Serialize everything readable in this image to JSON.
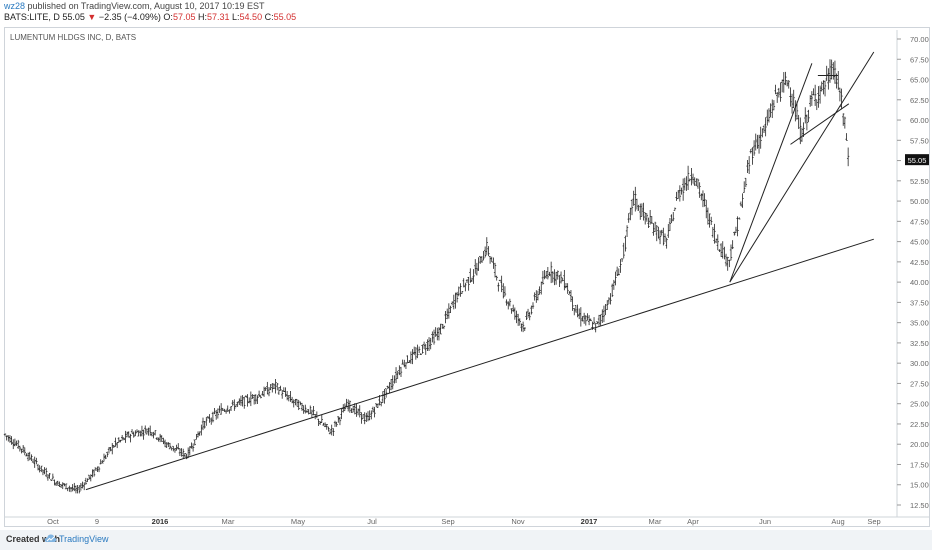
{
  "header": {
    "username": "wz28",
    "published_text": "published on TradingView.com, August 10, 2017 10:19 EST",
    "symbol": "BATS:LITE, D",
    "last": "55.05",
    "change_arrow": "▼",
    "change": "−2.35 (−4.09%)",
    "open_label": "O:",
    "open": "57.05",
    "high_label": "H:",
    "high": "57.31",
    "low_label": "L:",
    "low": "54.50",
    "close_label": "C:",
    "close": "55.05"
  },
  "footer": {
    "created_with": "Created with",
    "brand": "TradingView",
    "logo_icon": "tradingview-cloud-icon"
  },
  "colors": {
    "bars": "#222222",
    "trendline": "#222222",
    "down": "#d32f2f",
    "brand": "#2a7ac0",
    "axis_text": "#666666"
  },
  "chart_data": {
    "type": "ohlc",
    "title": "LUMENTUM HLDGS INC, D, BATS",
    "price_axis": {
      "side": "right",
      "ylim": [
        11.5,
        71.0
      ],
      "ticks": [
        "70.00",
        "67.50",
        "65.00",
        "62.50",
        "60.00",
        "57.50",
        "55.00",
        "52.50",
        "50.00",
        "47.50",
        "45.00",
        "42.50",
        "40.00",
        "37.50",
        "35.00",
        "32.50",
        "30.00",
        "27.50",
        "25.00",
        "22.50",
        "20.00",
        "17.50",
        "15.00",
        "12.50"
      ],
      "last_price_label": "55.05"
    },
    "time_axis": {
      "labels": [
        "Oct",
        "9",
        "2016",
        "Mar",
        "May",
        "Jul",
        "Sep",
        "Nov",
        "2017",
        "Mar",
        "Apr",
        "Jun",
        "Aug",
        "Sep"
      ],
      "bold_labels": [
        "2016",
        "2017"
      ]
    },
    "grid": false,
    "price_path": [
      [
        "2015-09-01",
        21.2
      ],
      [
        "2015-09-15",
        19.5
      ],
      [
        "2015-10-01",
        17.0
      ],
      [
        "2015-10-15",
        15.2
      ],
      [
        "2015-11-01",
        14.3
      ],
      [
        "2015-11-15",
        16.5
      ],
      [
        "2015-12-01",
        19.8
      ],
      [
        "2015-12-15",
        21.2
      ],
      [
        "2016-01-01",
        21.8
      ],
      [
        "2016-01-15",
        20.0
      ],
      [
        "2016-02-01",
        18.6
      ],
      [
        "2016-02-15",
        22.5
      ],
      [
        "2016-03-01",
        24.2
      ],
      [
        "2016-03-15",
        25.0
      ],
      [
        "2016-04-01",
        26.0
      ],
      [
        "2016-04-15",
        27.2
      ],
      [
        "2016-05-01",
        25.2
      ],
      [
        "2016-05-15",
        24.0
      ],
      [
        "2016-06-01",
        21.5
      ],
      [
        "2016-06-15",
        25.0
      ],
      [
        "2016-07-01",
        23.0
      ],
      [
        "2016-07-15",
        25.8
      ],
      [
        "2016-08-01",
        30.0
      ],
      [
        "2016-08-15",
        31.5
      ],
      [
        "2016-09-01",
        34.0
      ],
      [
        "2016-09-15",
        38.5
      ],
      [
        "2016-10-01",
        41.5
      ],
      [
        "2016-10-10",
        44.3
      ],
      [
        "2016-10-20",
        40.0
      ],
      [
        "2016-11-01",
        36.5
      ],
      [
        "2016-11-10",
        34.5
      ],
      [
        "2016-11-20",
        38.0
      ],
      [
        "2016-12-01",
        41.5
      ],
      [
        "2016-12-15",
        40.0
      ],
      [
        "2016-12-25",
        36.0
      ],
      [
        "2017-01-10",
        34.5
      ],
      [
        "2017-01-20",
        37.5
      ],
      [
        "2017-02-01",
        43.0
      ],
      [
        "2017-02-10",
        50.5
      ],
      [
        "2017-02-20",
        48.0
      ],
      [
        "2017-03-01",
        46.5
      ],
      [
        "2017-03-10",
        45.0
      ],
      [
        "2017-03-20",
        51.0
      ],
      [
        "2017-04-01",
        53.5
      ],
      [
        "2017-04-10",
        50.0
      ],
      [
        "2017-04-20",
        45.5
      ],
      [
        "2017-05-01",
        42.5
      ],
      [
        "2017-05-10",
        48.0
      ],
      [
        "2017-05-20",
        56.0
      ],
      [
        "2017-06-01",
        59.0
      ],
      [
        "2017-06-10",
        63.0
      ],
      [
        "2017-06-20",
        65.0
      ],
      [
        "2017-07-01",
        58.0
      ],
      [
        "2017-07-10",
        62.5
      ],
      [
        "2017-07-20",
        64.0
      ],
      [
        "2017-07-28",
        66.5
      ],
      [
        "2017-08-03",
        63.0
      ],
      [
        "2017-08-07",
        59.0
      ],
      [
        "2017-08-10",
        55.05
      ]
    ],
    "trendlines": [
      {
        "from": [
          "2015-11-08",
          14.4
        ],
        "to": [
          "2017-08-31",
          45.3
        ]
      },
      {
        "from": [
          "2017-05-02",
          40.0
        ],
        "to": [
          "2017-08-31",
          68.4
        ]
      },
      {
        "from": [
          "2017-05-02",
          40.0
        ],
        "to": [
          "2017-07-10",
          67.0
        ]
      },
      {
        "from": [
          "2017-06-22",
          57.0
        ],
        "to": [
          "2017-08-10",
          62.0
        ]
      }
    ],
    "horizontal_segments": [
      {
        "from": "2017-07-15",
        "to": "2017-08-01",
        "y": 65.5
      }
    ]
  }
}
